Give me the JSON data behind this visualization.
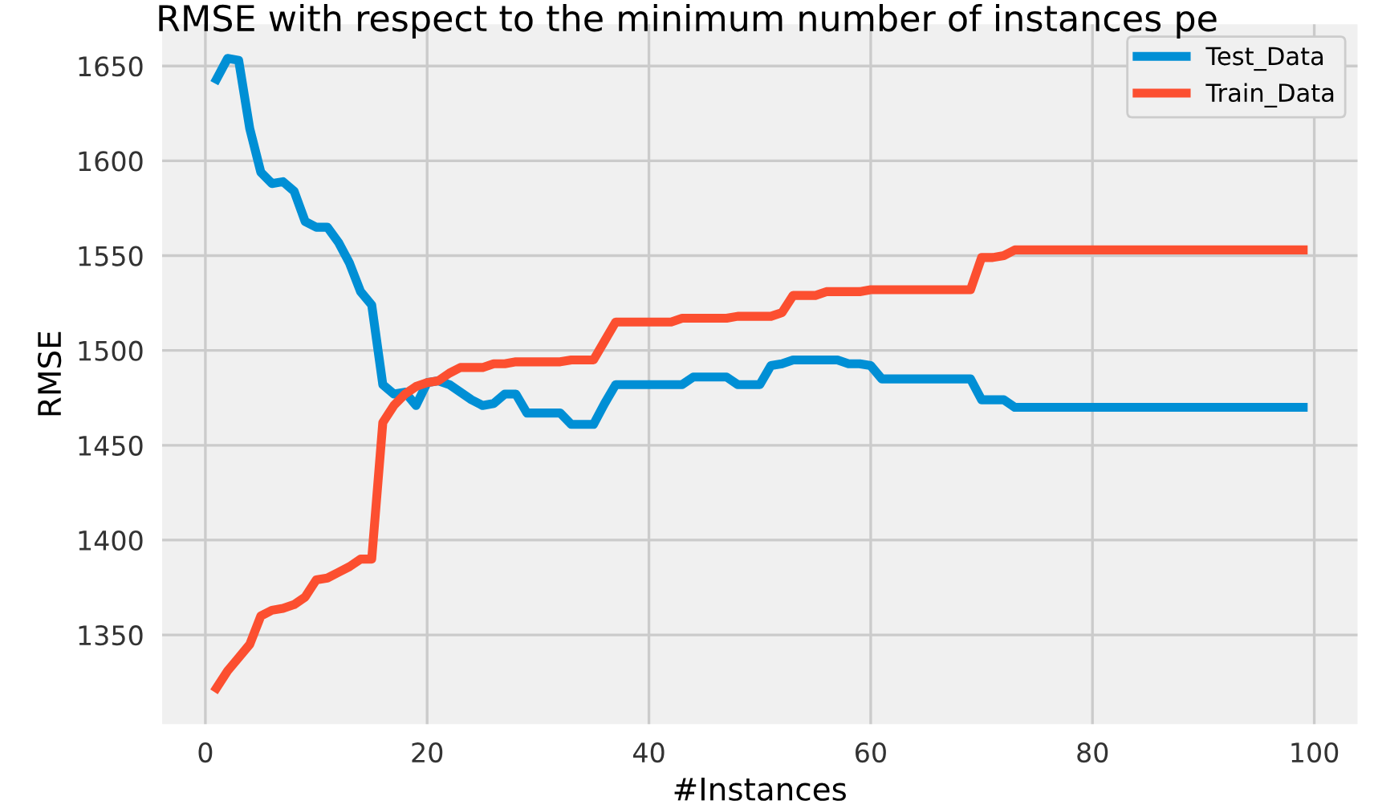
{
  "chart_data": {
    "type": "line",
    "title": "RMSE with respect to the minimum number of instances pe",
    "xlabel": "#Instances",
    "ylabel": "RMSE",
    "x": [
      1,
      2,
      3,
      4,
      5,
      6,
      7,
      8,
      9,
      10,
      11,
      12,
      13,
      14,
      15,
      16,
      17,
      18,
      19,
      20,
      21,
      22,
      23,
      24,
      25,
      26,
      27,
      28,
      29,
      30,
      31,
      32,
      33,
      34,
      35,
      36,
      37,
      38,
      39,
      40,
      41,
      42,
      43,
      44,
      45,
      46,
      47,
      48,
      49,
      50,
      51,
      52,
      53,
      54,
      55,
      56,
      57,
      58,
      59,
      60,
      61,
      62,
      63,
      64,
      65,
      66,
      67,
      68,
      69,
      70,
      71,
      72,
      73,
      74,
      75,
      76,
      77,
      78,
      79,
      80,
      81,
      82,
      83,
      84,
      85,
      86,
      87,
      88,
      89,
      90,
      91,
      92,
      93,
      94,
      95,
      96,
      97,
      98,
      99
    ],
    "series": [
      {
        "name": "Test_Data",
        "color": "#008fd5",
        "values": [
          1643,
          1654,
          1653,
          1617,
          1594,
          1588,
          1589,
          1584,
          1568,
          1565,
          1565,
          1557,
          1546,
          1531,
          1524,
          1482,
          1477,
          1478,
          1471,
          1483,
          1484,
          1482,
          1478,
          1474,
          1471,
          1472,
          1477,
          1477,
          1467,
          1467,
          1467,
          1467,
          1461,
          1461,
          1461,
          1472,
          1482,
          1482,
          1482,
          1482,
          1482,
          1482,
          1482,
          1486,
          1486,
          1486,
          1486,
          1482,
          1482,
          1482,
          1492,
          1493,
          1495,
          1495,
          1495,
          1495,
          1495,
          1493,
          1493,
          1492,
          1485,
          1485,
          1485,
          1485,
          1485,
          1485,
          1485,
          1485,
          1485,
          1474,
          1474,
          1474,
          1470,
          1470,
          1470,
          1470,
          1470,
          1470,
          1470,
          1470,
          1470,
          1470,
          1470,
          1470,
          1470,
          1470,
          1470,
          1470,
          1470,
          1470,
          1470,
          1470,
          1470,
          1470,
          1470,
          1470,
          1470,
          1470,
          1470
        ]
      },
      {
        "name": "Train_Data",
        "color": "#fc4f30",
        "values": [
          1322,
          1331,
          1338,
          1345,
          1360,
          1363,
          1364,
          1366,
          1370,
          1379,
          1380,
          1383,
          1386,
          1390,
          1390,
          1462,
          1471,
          1477,
          1481,
          1483,
          1484,
          1488,
          1491,
          1491,
          1491,
          1493,
          1493,
          1494,
          1494,
          1494,
          1494,
          1494,
          1495,
          1495,
          1495,
          1505,
          1515,
          1515,
          1515,
          1515,
          1515,
          1515,
          1517,
          1517,
          1517,
          1517,
          1517,
          1518,
          1518,
          1518,
          1518,
          1520,
          1529,
          1529,
          1529,
          1531,
          1531,
          1531,
          1531,
          1532,
          1532,
          1532,
          1532,
          1532,
          1532,
          1532,
          1532,
          1532,
          1532,
          1549,
          1549,
          1550,
          1553,
          1553,
          1553,
          1553,
          1553,
          1553,
          1553,
          1553,
          1553,
          1553,
          1553,
          1553,
          1553,
          1553,
          1553,
          1553,
          1553,
          1553,
          1553,
          1553,
          1553,
          1553,
          1553,
          1553,
          1553,
          1553,
          1553
        ]
      }
    ],
    "xlim": [
      -3.9,
      103.9
    ],
    "xticks": [
      0,
      20,
      40,
      60,
      80,
      100
    ],
    "ylim": [
      1303,
      1672
    ],
    "yticks": [
      1350,
      1400,
      1450,
      1500,
      1550,
      1600,
      1650
    ],
    "grid": true,
    "legend": "top right",
    "line_style": "solid",
    "marker": "none"
  }
}
